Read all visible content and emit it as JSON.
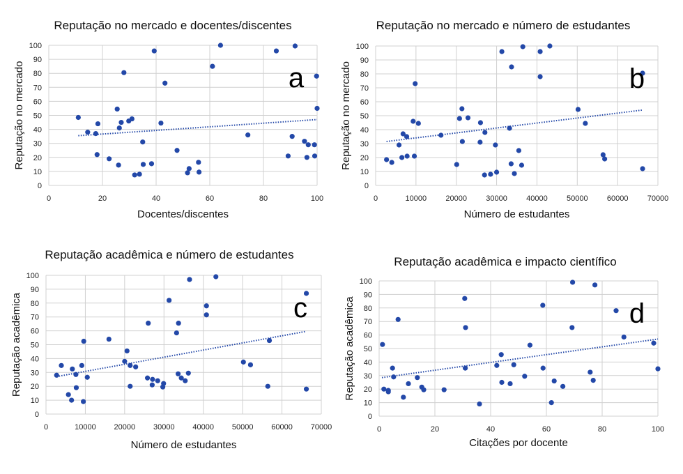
{
  "colors": {
    "marker": "#2348a8",
    "trendline": "#2348a8",
    "grid": "#d0d0d0"
  },
  "chart_data": [
    {
      "type": "scatter",
      "panel_label": "a",
      "title": "Reputação no mercado e docentes/discentes",
      "xlabel": "Docentes/discentes",
      "ylabel": "Reputação no mercado",
      "xlim": [
        0,
        100
      ],
      "ylim": [
        0,
        100
      ],
      "xticks": [
        0,
        20,
        40,
        60,
        80,
        100
      ],
      "yticks": [
        0,
        10,
        20,
        30,
        40,
        50,
        60,
        70,
        80,
        90,
        100
      ],
      "grid": true,
      "trendline": {
        "style": "dotted",
        "x": [
          11,
          100
        ],
        "y": [
          35.5,
          47
        ]
      },
      "points": [
        [
          11,
          48.5
        ],
        [
          14.5,
          38
        ],
        [
          17.5,
          37
        ],
        [
          18,
          22
        ],
        [
          18.3,
          44
        ],
        [
          22.5,
          19
        ],
        [
          25.5,
          54.5
        ],
        [
          26,
          14.5
        ],
        [
          26.3,
          41
        ],
        [
          27,
          45
        ],
        [
          28,
          80.5
        ],
        [
          29.8,
          46
        ],
        [
          31,
          47.5
        ],
        [
          32,
          7.5
        ],
        [
          33.8,
          8
        ],
        [
          35,
          31
        ],
        [
          35.2,
          15
        ],
        [
          38.3,
          15.5
        ],
        [
          39.3,
          96
        ],
        [
          41.8,
          44.5
        ],
        [
          43.3,
          73
        ],
        [
          47.8,
          25
        ],
        [
          51.7,
          9
        ],
        [
          52.3,
          12
        ],
        [
          55.8,
          16.5
        ],
        [
          56,
          9.5
        ],
        [
          61,
          85
        ],
        [
          64,
          100
        ],
        [
          74.2,
          36
        ],
        [
          84.8,
          96
        ],
        [
          89.2,
          21
        ],
        [
          90.7,
          35
        ],
        [
          91.8,
          99.5
        ],
        [
          95.3,
          31.5
        ],
        [
          96.2,
          20
        ],
        [
          96.7,
          29
        ],
        [
          99,
          29
        ],
        [
          99.1,
          21
        ],
        [
          99.8,
          78
        ],
        [
          100,
          55
        ]
      ]
    },
    {
      "type": "scatter",
      "panel_label": "b",
      "title": "Reputação no mercado e número de estudantes",
      "xlabel": "Número de estudantes",
      "ylabel": "Reputação no mercado",
      "xlim": [
        0,
        70000
      ],
      "ylim": [
        0,
        100
      ],
      "xticks": [
        0,
        10000,
        20000,
        30000,
        40000,
        50000,
        60000,
        70000
      ],
      "yticks": [
        0,
        10,
        20,
        30,
        40,
        50,
        60,
        70,
        80,
        90,
        100
      ],
      "grid": true,
      "trendline": {
        "style": "dotted",
        "x": [
          2700,
          66000
        ],
        "y": [
          31.5,
          54
        ]
      },
      "points": [
        [
          2700,
          18.5
        ],
        [
          4000,
          16.5
        ],
        [
          5800,
          29
        ],
        [
          6500,
          20
        ],
        [
          6800,
          37
        ],
        [
          7700,
          35
        ],
        [
          7800,
          21
        ],
        [
          9300,
          46
        ],
        [
          9600,
          21
        ],
        [
          9800,
          73
        ],
        [
          10600,
          44.5
        ],
        [
          16200,
          36
        ],
        [
          20100,
          15
        ],
        [
          20800,
          48
        ],
        [
          21400,
          55
        ],
        [
          21500,
          31.5
        ],
        [
          22900,
          48.5
        ],
        [
          25900,
          31
        ],
        [
          26000,
          45
        ],
        [
          27000,
          7.5
        ],
        [
          27100,
          38
        ],
        [
          28500,
          8
        ],
        [
          29700,
          29
        ],
        [
          30000,
          9.5
        ],
        [
          31300,
          96
        ],
        [
          33200,
          41
        ],
        [
          33600,
          15.5
        ],
        [
          33700,
          85
        ],
        [
          34400,
          8.5
        ],
        [
          35500,
          25
        ],
        [
          36200,
          14.5
        ],
        [
          36500,
          99.5
        ],
        [
          40800,
          96
        ],
        [
          40800,
          78
        ],
        [
          43200,
          100
        ],
        [
          50200,
          54.5
        ],
        [
          52000,
          44.5
        ],
        [
          56400,
          22
        ],
        [
          56800,
          19
        ],
        [
          66200,
          80.5
        ],
        [
          66200,
          12
        ]
      ]
    },
    {
      "type": "scatter",
      "panel_label": "c",
      "title": "Reputação acadêmica e número de estudantes",
      "xlabel": "Número de estudantes",
      "ylabel": "Reputação acadêmica",
      "xlim": [
        0,
        70000
      ],
      "ylim": [
        0,
        100
      ],
      "xticks": [
        0,
        10000,
        20000,
        30000,
        40000,
        50000,
        60000,
        70000
      ],
      "yticks": [
        0,
        10,
        20,
        30,
        40,
        50,
        60,
        70,
        80,
        90,
        100
      ],
      "grid": true,
      "trendline": {
        "style": "dotted",
        "x": [
          2700,
          66000
        ],
        "y": [
          27,
          59.5
        ]
      },
      "points": [
        [
          2700,
          28
        ],
        [
          3900,
          35
        ],
        [
          5700,
          14
        ],
        [
          6500,
          10
        ],
        [
          6700,
          32.5
        ],
        [
          7600,
          28.5
        ],
        [
          7700,
          19
        ],
        [
          9100,
          35
        ],
        [
          9500,
          9
        ],
        [
          9600,
          52.5
        ],
        [
          10500,
          26.5
        ],
        [
          16000,
          54
        ],
        [
          20000,
          38
        ],
        [
          20600,
          45.5
        ],
        [
          21400,
          35
        ],
        [
          21400,
          20
        ],
        [
          22800,
          34
        ],
        [
          25800,
          26
        ],
        [
          26000,
          65.5
        ],
        [
          27000,
          21
        ],
        [
          27100,
          25
        ],
        [
          28400,
          24
        ],
        [
          29700,
          19.5
        ],
        [
          29900,
          22
        ],
        [
          31300,
          82
        ],
        [
          33200,
          58.5
        ],
        [
          33600,
          29
        ],
        [
          33700,
          65.5
        ],
        [
          34400,
          26
        ],
        [
          35400,
          24
        ],
        [
          36200,
          29.5
        ],
        [
          36500,
          97
        ],
        [
          40800,
          78
        ],
        [
          40800,
          71.5
        ],
        [
          43200,
          99
        ],
        [
          50200,
          37.5
        ],
        [
          52000,
          35.5
        ],
        [
          56400,
          20
        ],
        [
          56800,
          53
        ],
        [
          66200,
          87
        ],
        [
          66200,
          18
        ]
      ]
    },
    {
      "type": "scatter",
      "panel_label": "d",
      "title": "Reputação acadêmica e impacto científico",
      "xlabel": "Citações por docente",
      "ylabel": "Reputação acadêmica",
      "xlim": [
        0,
        100
      ],
      "ylim": [
        0,
        100
      ],
      "xticks": [
        0,
        20,
        40,
        60,
        80,
        100
      ],
      "yticks": [
        0,
        10,
        20,
        30,
        40,
        50,
        60,
        70,
        80,
        90,
        100
      ],
      "grid": true,
      "trendline": {
        "style": "dotted",
        "x": [
          1,
          100
        ],
        "y": [
          28.5,
          57
        ]
      },
      "points": [
        [
          1.2,
          53
        ],
        [
          1.7,
          20
        ],
        [
          3.3,
          19
        ],
        [
          3.3,
          18
        ],
        [
          4.8,
          35.5
        ],
        [
          5.2,
          29
        ],
        [
          6.8,
          71.5
        ],
        [
          8.7,
          14
        ],
        [
          10.5,
          24
        ],
        [
          13.7,
          28.5
        ],
        [
          15.3,
          21.5
        ],
        [
          16,
          19.5
        ],
        [
          23.3,
          19.5
        ],
        [
          30.7,
          87
        ],
        [
          30.9,
          35.5
        ],
        [
          31,
          65.5
        ],
        [
          36,
          9
        ],
        [
          42.2,
          37.5
        ],
        [
          43.8,
          45.5
        ],
        [
          44,
          25
        ],
        [
          47,
          24
        ],
        [
          48.3,
          38
        ],
        [
          52.2,
          29.5
        ],
        [
          54.1,
          52.5
        ],
        [
          58.7,
          82
        ],
        [
          58.8,
          35.5
        ],
        [
          61.8,
          10
        ],
        [
          62.8,
          26
        ],
        [
          65.9,
          22
        ],
        [
          69.2,
          65.5
        ],
        [
          69.4,
          99
        ],
        [
          75.7,
          32.5
        ],
        [
          76.8,
          26.5
        ],
        [
          77.4,
          97
        ],
        [
          85,
          78
        ],
        [
          87.8,
          58.5
        ],
        [
          98.5,
          54
        ],
        [
          100,
          35
        ]
      ]
    }
  ]
}
